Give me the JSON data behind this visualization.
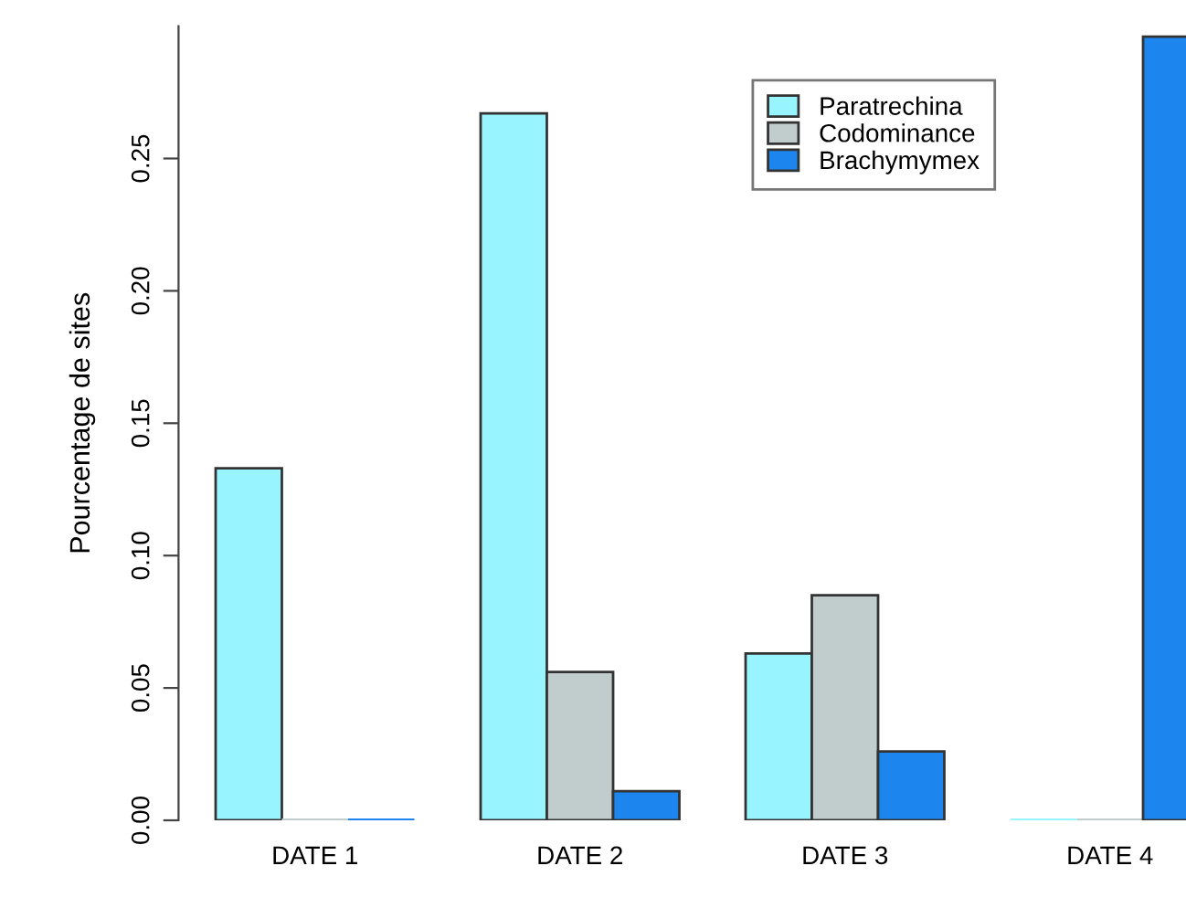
{
  "chart_data": {
    "type": "bar",
    "ylabel": "Pourcentage de sites",
    "categories": [
      "DATE 1",
      "DATE 2",
      "DATE 3",
      "DATE 4"
    ],
    "series": [
      {
        "name": "Paratrechina",
        "color": "#98f5ff",
        "values": [
          0.133,
          0.267,
          0.063,
          0
        ]
      },
      {
        "name": "Codominance",
        "color": "#c1cdcd",
        "values": [
          0,
          0.056,
          0.085,
          0
        ]
      },
      {
        "name": "Brachymymex",
        "color": "#1c86ee",
        "values": [
          0,
          0.011,
          0.026,
          0.296
        ]
      }
    ],
    "ylim": [
      0,
      0.3
    ],
    "yticks": [
      {
        "value": 0,
        "label": "0.00"
      },
      {
        "value": 0.05,
        "label": "0.05"
      },
      {
        "value": 0.1,
        "label": "0.10"
      },
      {
        "value": 0.15,
        "label": "0.15"
      },
      {
        "value": 0.2,
        "label": "0.20"
      },
      {
        "value": 0.25,
        "label": "0.25"
      }
    ],
    "legend": "top",
    "grid": false
  }
}
